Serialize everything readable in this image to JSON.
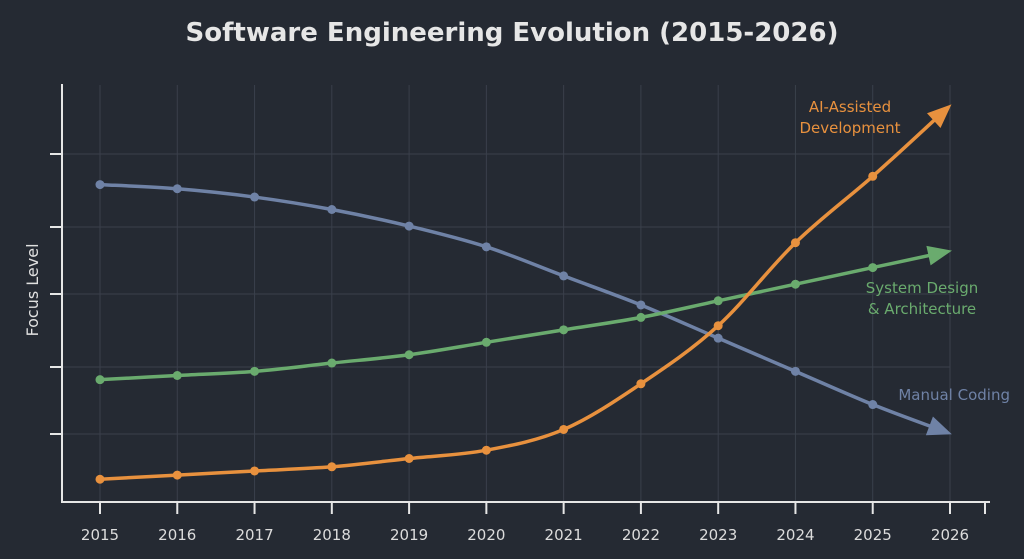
{
  "chart_data": {
    "type": "line",
    "title": "Software Engineering Evolution (2015-2026)",
    "xlabel": "",
    "ylabel": "Focus Level",
    "x": [
      2015,
      2016,
      2017,
      2018,
      2019,
      2020,
      2021,
      2022,
      2023,
      2024,
      2025,
      2026
    ],
    "xtick_labels": [
      "2015",
      "2016",
      "2017",
      "2018",
      "2019",
      "2020",
      "2021",
      "2022",
      "2023",
      "2024",
      "2025",
      "2026"
    ],
    "ylim": [
      0,
      100
    ],
    "y_tick_labels_shown": false,
    "grid": true,
    "series": [
      {
        "name": "Manual Coding",
        "color": "#6f82a6",
        "values": [
          76,
          75,
          73,
          70,
          66,
          61,
          54,
          47,
          39,
          31,
          23,
          16
        ],
        "end_arrow": true
      },
      {
        "name": "System Design & Architecture",
        "label_lines": [
          "System Design",
          "& Architecture"
        ],
        "color": "#6aab6e",
        "values": [
          29,
          30,
          31,
          33,
          35,
          38,
          41,
          44,
          48,
          52,
          56,
          60
        ],
        "end_arrow": true
      },
      {
        "name": "AI-Assisted Development",
        "label_lines": [
          "AI-Assisted",
          "Development"
        ],
        "color": "#e8913e",
        "values": [
          5,
          6,
          7,
          8,
          10,
          12,
          17,
          28,
          42,
          62,
          78,
          95
        ],
        "end_arrow": true
      }
    ],
    "background": "#252a33"
  }
}
